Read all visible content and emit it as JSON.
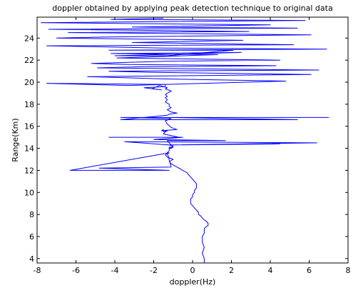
{
  "chart_data": {
    "type": "line",
    "title": "doppler obtained by applying peak detection technique to original data",
    "xlabel": "doppler(Hz)",
    "ylabel": "Range(Km)",
    "xlim": [
      -8,
      8
    ],
    "ylim": [
      3.6,
      25.9
    ],
    "xticks": [
      -8,
      -6,
      -4,
      -2,
      0,
      2,
      4,
      6,
      8
    ],
    "yticks": [
      4,
      6,
      8,
      10,
      12,
      14,
      16,
      18,
      20,
      22,
      24
    ],
    "grid": false,
    "series_color": "#0000ff",
    "series": [
      {
        "x": [
          0.6,
          0.6,
          0.5,
          0.6,
          0.5,
          0.5,
          0.6,
          0.6,
          0.7,
          0.8,
          0.8,
          0.7,
          0.6,
          0.5,
          0.4,
          0.3,
          0.3,
          0.2,
          0.1,
          0.0,
          -0.1,
          -0.1,
          -0.1,
          0.0,
          0.0,
          0.1,
          0.1,
          0.2,
          0.2,
          0.2,
          0.1,
          0.0,
          -0.1,
          -0.2,
          -0.3,
          -0.5,
          -0.7,
          -0.9,
          -1.1,
          -1.2,
          -1.0,
          -1.3,
          -1.4,
          -1.2,
          -6.3,
          -1.2,
          -4.8,
          -1.1,
          -1.3,
          -1.2,
          -1.2,
          -1.1,
          -1.0,
          -1.2,
          -1.2,
          -1.0,
          -1.2,
          -3.5,
          6.4,
          -1.3,
          4.5,
          -1.3,
          -1.1,
          -1.3,
          1.7,
          -2.0,
          -0.5,
          -2.0,
          -4.3,
          -0.7,
          -1.2,
          -1.5,
          -1.4,
          -1.3,
          -1.5,
          -1.5,
          -1.6,
          -0.8,
          -1.1,
          -1.3,
          -1.4,
          -1.1,
          -3.7,
          7.0,
          -1.2,
          5.4,
          -3.7,
          -1.3,
          -1.2,
          -0.8,
          -1.1,
          -1.3,
          -1.1,
          -1.2,
          -1.2,
          -1.4,
          -1.3,
          -1.4,
          -1.3,
          -1.4,
          -1.3,
          -1.1,
          -1.4,
          -1.3,
          -1.5,
          -1.7,
          -2.1,
          -1.6,
          -2.5,
          -1.4,
          -1.4,
          -7.5,
          -3.3,
          4.8,
          -1.5,
          -5.4,
          6.1,
          -2.2,
          -4.3,
          6.5,
          -4.9,
          -2.6,
          4.3,
          -3.4,
          -5.2,
          -1.4,
          4.5,
          -3.9,
          1.3,
          -4.2,
          2.5,
          -4.0,
          -1.3,
          2.1,
          -4.3,
          6.9,
          -1.5,
          -7.5,
          5.2,
          -3.1,
          2.6,
          -7.0,
          -4.4,
          6.1,
          -6.4,
          2.9,
          -7.4,
          5.4,
          -3.1,
          4.0,
          -7.8,
          5.8,
          -4.2,
          -1.5
        ],
        "y": [
          3.6,
          4.0,
          4.5,
          5.0,
          5.5,
          6.0,
          6.3,
          6.7,
          6.9,
          7.0,
          7.2,
          7.4,
          7.5,
          7.7,
          7.9,
          8.0,
          8.2,
          8.4,
          8.6,
          8.8,
          9.0,
          9.2,
          9.4,
          9.6,
          9.8,
          10.0,
          10.2,
          10.4,
          10.6,
          10.8,
          11.0,
          11.2,
          11.4,
          11.6,
          11.8,
          12.0,
          12.2,
          12.4,
          12.6,
          12.8,
          13.0,
          13.2,
          13.4,
          13.6,
          12.0,
          12.0,
          12.2,
          12.3,
          13.6,
          13.8,
          14.0,
          14.0,
          14.1,
          14.1,
          14.0,
          14.2,
          14.3,
          14.6,
          14.5,
          14.3,
          14.4,
          14.3,
          14.3,
          14.7,
          14.7,
          14.8,
          15.0,
          15.0,
          15.0,
          15.0,
          15.2,
          15.3,
          15.5,
          15.6,
          15.5,
          15.7,
          15.6,
          15.7,
          15.9,
          16.2,
          16.5,
          16.7,
          16.8,
          16.8,
          16.8,
          16.6,
          16.6,
          17.0,
          17.1,
          17.2,
          17.3,
          17.5,
          17.7,
          17.8,
          18.0,
          18.2,
          18.4,
          18.6,
          18.7,
          18.9,
          19.0,
          19.2,
          19.4,
          19.5,
          19.6,
          19.7,
          19.4,
          19.3,
          19.5,
          19.6,
          19.8,
          19.9,
          19.7,
          20.1,
          20.3,
          20.5,
          20.7,
          20.9,
          21.0,
          21.1,
          21.3,
          21.4,
          21.5,
          21.6,
          21.7,
          21.9,
          22.0,
          22.2,
          22.5,
          22.6,
          22.7,
          22.4,
          22.4,
          22.9,
          22.9,
          23.0,
          23.1,
          23.3,
          23.4,
          23.6,
          23.8,
          24.0,
          24.1,
          24.3,
          24.5,
          24.6,
          24.8,
          24.9,
          25.0,
          25.2,
          25.4,
          25.6,
          25.7,
          25.8
        ]
      }
    ]
  }
}
